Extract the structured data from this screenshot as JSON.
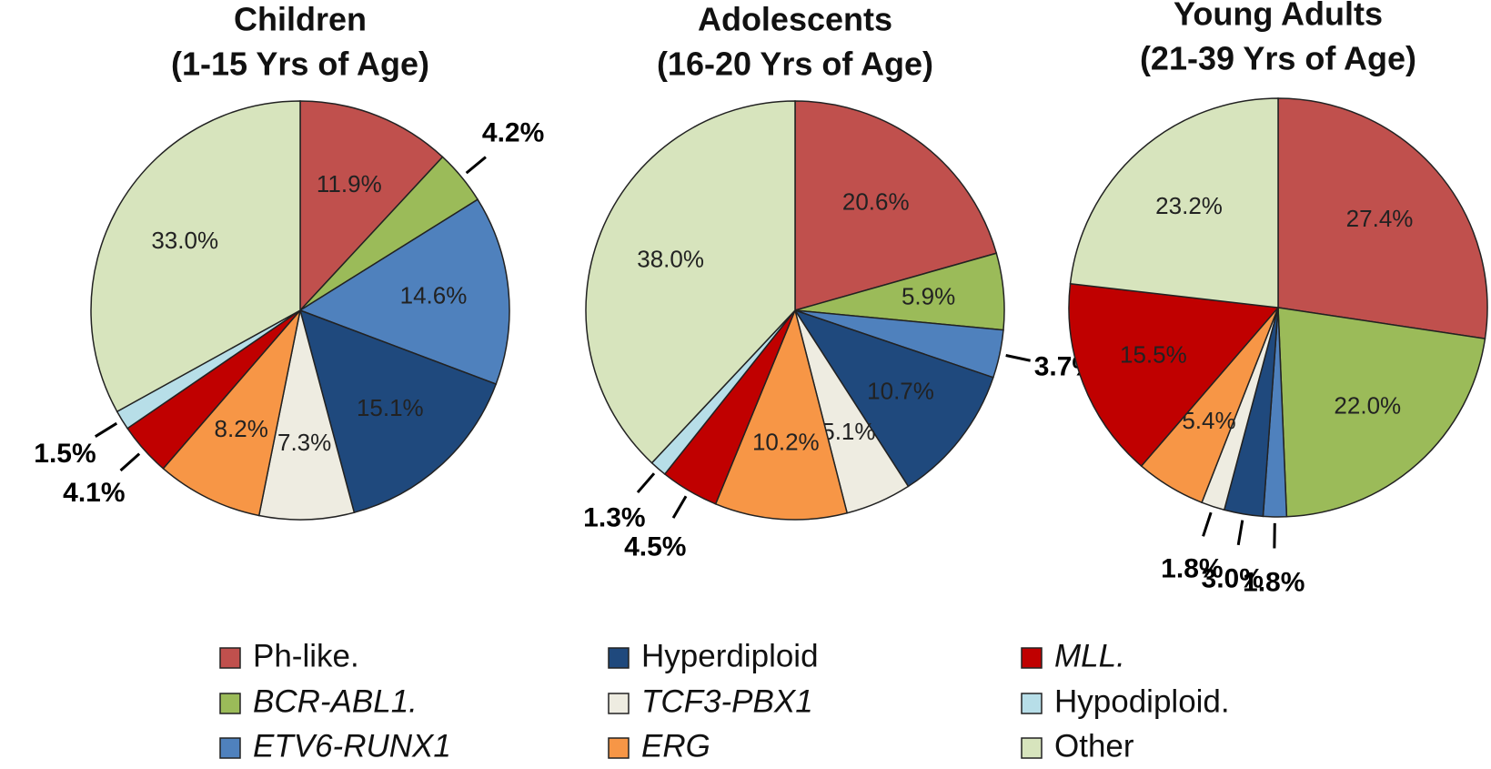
{
  "chart_data": [
    {
      "type": "pie",
      "title": "Children",
      "subtitle": "(1-15 Yrs of Age)",
      "categories": [
        "Ph-like.",
        "BCR-ABL1.",
        "ETV6-RUNX1",
        "Hyperdiploid",
        "TCF3-PBX1",
        "ERG",
        "MLL.",
        "Hypodiploid.",
        "Other"
      ],
      "values": [
        11.9,
        4.2,
        14.6,
        15.1,
        7.3,
        8.2,
        4.1,
        1.5,
        33.0
      ],
      "value_labels": [
        "11.9%",
        "4.2%",
        "14.6%",
        "15.1%",
        "7.3%",
        "8.2%",
        "4.1%",
        "1.5%",
        "33.0%"
      ],
      "colors": [
        "#c0504d",
        "#9bbb59",
        "#4f81bd",
        "#1f497d",
        "#eeece1",
        "#f79646",
        "#c00000",
        "#b7dee8",
        "#d7e4bd"
      ],
      "legend": {
        "position": "bottom",
        "italic": [
          false,
          true,
          true,
          false,
          true,
          true,
          true,
          false,
          false
        ]
      }
    },
    {
      "type": "pie",
      "title": "Adolescents",
      "subtitle": "(16-20 Yrs of Age)",
      "categories": [
        "Ph-like.",
        "BCR-ABL1.",
        "ETV6-RUNX1",
        "Hyperdiploid",
        "TCF3-PBX1",
        "ERG",
        "MLL.",
        "Hypodiploid.",
        "Other"
      ],
      "values": [
        20.6,
        5.9,
        3.7,
        10.7,
        5.1,
        10.2,
        4.5,
        1.3,
        38.0
      ],
      "value_labels": [
        "20.6%",
        "5.9%",
        "3.7%",
        "10.7%",
        "5.1%",
        "10.2%",
        "4.5%",
        "1.3%",
        "38.0%"
      ],
      "colors": [
        "#c0504d",
        "#9bbb59",
        "#4f81bd",
        "#1f497d",
        "#eeece1",
        "#f79646",
        "#c00000",
        "#b7dee8",
        "#d7e4bd"
      ]
    },
    {
      "type": "pie",
      "title": "Young Adults",
      "subtitle": "(21-39 Yrs of Age)",
      "categories": [
        "Ph-like.",
        "BCR-ABL1.",
        "ETV6-RUNX1",
        "Hyperdiploid",
        "TCF3-PBX1",
        "ERG",
        "MLL.",
        "Other"
      ],
      "values": [
        27.4,
        22.0,
        1.8,
        3.0,
        1.8,
        5.4,
        15.5,
        23.2
      ],
      "value_labels": [
        "27.4%",
        "22.0%",
        "1.8%",
        "3.0%",
        "1.8%",
        "5.4%",
        "15.5%",
        "23.2%"
      ],
      "colors": [
        "#c0504d",
        "#9bbb59",
        "#4f81bd",
        "#1f497d",
        "#eeece1",
        "#f79646",
        "#c00000",
        "#d7e4bd"
      ]
    }
  ]
}
